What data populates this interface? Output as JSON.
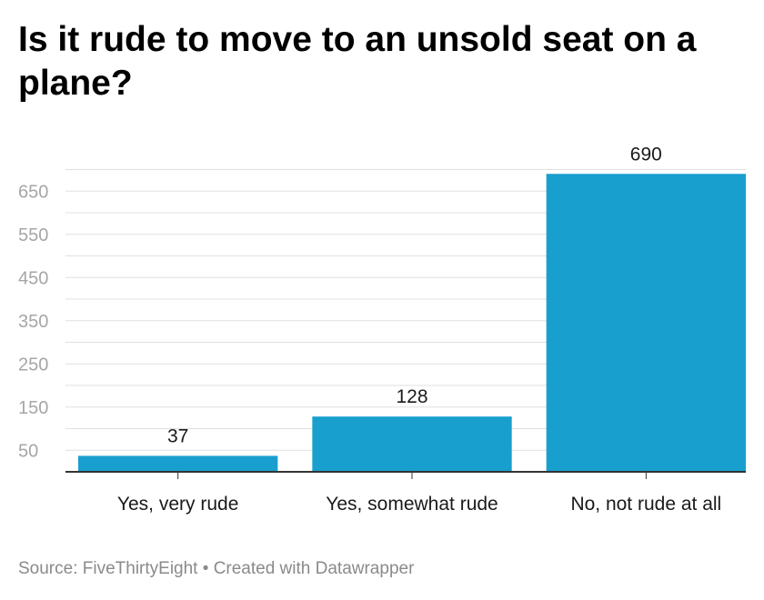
{
  "title": "Is it rude to move to an unsold seat on a plane?",
  "footer": {
    "source": "Source: FiveThirtyEight",
    "separator": "•",
    "credit": "Created with Datawrapper"
  },
  "colors": {
    "bar": "#189fce",
    "grid": "#e0e0e0",
    "tick_label": "#a6a6a6",
    "axis": "#333333"
  },
  "chart_data": {
    "type": "bar",
    "categories": [
      "Yes, very rude",
      "Yes, somewhat rude",
      "No, not rude at all"
    ],
    "values": [
      37,
      128,
      690
    ],
    "data_labels": [
      "37",
      "128",
      "690"
    ],
    "title": "Is it rude to move to an unsold seat on a plane?",
    "xlabel": "",
    "ylabel": "",
    "ylim": [
      0,
      690
    ],
    "yticks": [
      50,
      150,
      250,
      350,
      450,
      550,
      650
    ],
    "ytick_labels": [
      "50",
      "150",
      "250",
      "350",
      "450",
      "550",
      "650"
    ],
    "grid": true,
    "legend": "none"
  }
}
